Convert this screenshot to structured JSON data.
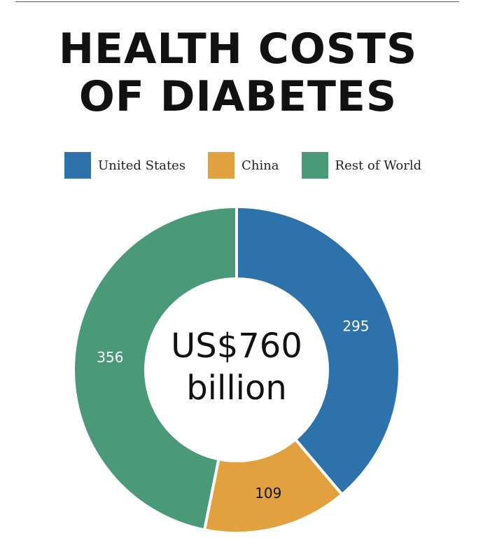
{
  "title": {
    "line1": "HEALTH COSTS",
    "line2": "OF DIABETES"
  },
  "chart_data": {
    "type": "pie",
    "donut": true,
    "title": "HEALTH COSTS OF DIABETES",
    "center_label": [
      "US$760",
      "billion"
    ],
    "categories": [
      "United States",
      "China",
      "Rest of World"
    ],
    "values": [
      295,
      109,
      356
    ],
    "colors": [
      "#2e72ab",
      "#e2a03f",
      "#4a9a79"
    ],
    "legend_position": "top"
  }
}
